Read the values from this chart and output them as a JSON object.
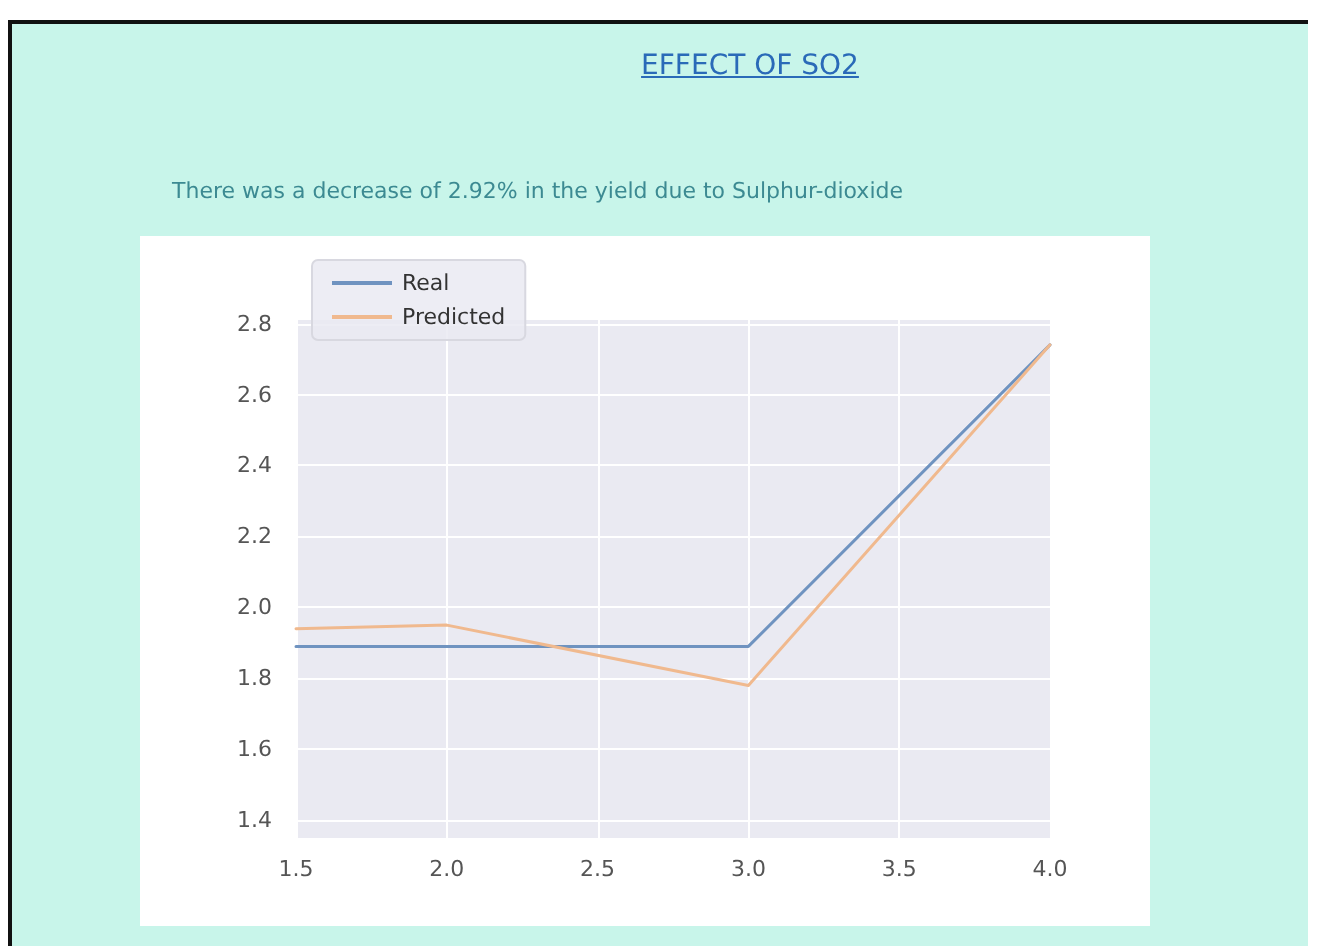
{
  "chart_data": {
    "type": "line",
    "title": "EFFECT OF SO2",
    "subtitle": "There was a decrease of 2.92% in the yield due to Sulphur-dioxide",
    "x": [
      1.5,
      2.0,
      3.0,
      4.0
    ],
    "series": [
      {
        "name": "Real",
        "color": "#6f93c0",
        "values": [
          1.89,
          1.89,
          1.89,
          2.74
        ]
      },
      {
        "name": "Predicted",
        "color": "#f0b98e",
        "values": [
          1.94,
          1.95,
          1.78,
          2.74
        ]
      }
    ],
    "xlim": [
      1.5,
      4.0
    ],
    "xticks": [
      1.5,
      {
        "value": 2,
        "label": "2.0"
      },
      2.5,
      {
        "value": 3,
        "label": "3.0"
      },
      3.5,
      {
        "value": 4,
        "label": "4.0"
      }
    ],
    "ylim": [
      1.35,
      2.81
    ],
    "yticks": [
      1.4,
      1.6,
      1.8,
      {
        "value": 2,
        "label": "2.0"
      },
      2.2,
      2.4,
      2.6,
      2.8
    ],
    "grid": true,
    "legend": "top left",
    "marker": "none",
    "line_style": "solid"
  }
}
